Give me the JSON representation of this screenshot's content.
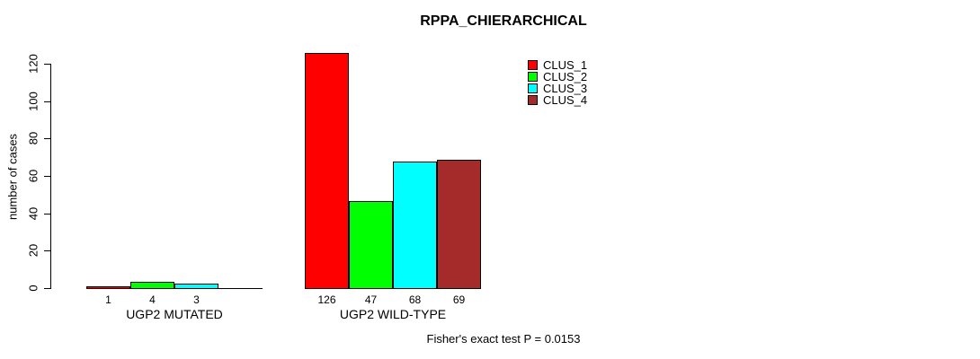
{
  "title": "RPPA_CHIERARCHICAL",
  "footer": "Fisher's exact test P = 0.0153",
  "y_axis": {
    "label": "number of cases",
    "ticks": [
      0,
      20,
      40,
      60,
      80,
      100,
      120
    ]
  },
  "legend": {
    "entries": [
      {
        "label": "CLUS_1",
        "color": "#FF0000"
      },
      {
        "label": "CLUS_2",
        "color": "#00FF00"
      },
      {
        "label": "CLUS_3",
        "color": "#00FFFF"
      },
      {
        "label": "CLUS_4",
        "color": "#A52A2A"
      }
    ]
  },
  "chart_data": {
    "type": "bar",
    "title": "RPPA_CHIERARCHICAL",
    "xlabel": "",
    "ylabel": "number of cases",
    "ylim": [
      0,
      130
    ],
    "yticks": [
      0,
      20,
      40,
      60,
      80,
      100,
      120
    ],
    "grid": false,
    "legend_position": "top-right",
    "categories": [
      "UGP2 MUTATED",
      "UGP2 WILD-TYPE"
    ],
    "series": [
      {
        "name": "CLUS_1",
        "color": "#FF0000",
        "values": [
          1,
          126
        ]
      },
      {
        "name": "CLUS_2",
        "color": "#00FF00",
        "values": [
          4,
          47
        ]
      },
      {
        "name": "CLUS_3",
        "color": "#00FFFF",
        "values": [
          3,
          68
        ]
      },
      {
        "name": "CLUS_4",
        "color": "#A52A2A",
        "values": [
          0,
          69
        ]
      }
    ],
    "bar_value_labels": [
      [
        "1",
        "4",
        "3",
        ""
      ],
      [
        "126",
        "47",
        "68",
        "69"
      ]
    ],
    "annotation": "Fisher's exact test P = 0.0153"
  }
}
